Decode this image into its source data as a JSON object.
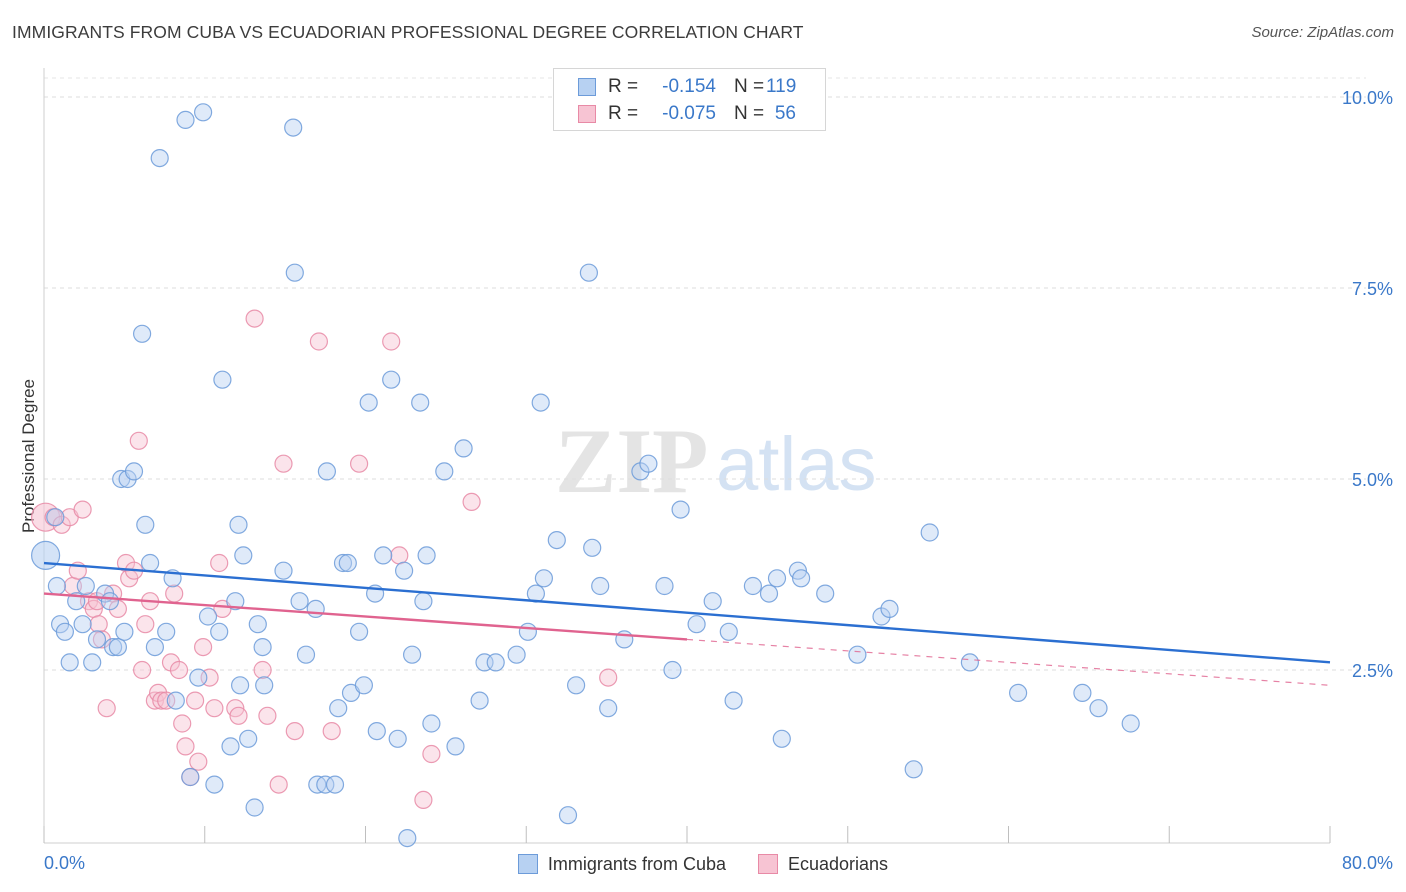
{
  "title": "IMMIGRANTS FROM CUBA VS ECUADORIAN PROFESSIONAL DEGREE CORRELATION CHART",
  "source": "Source: ZipAtlas.com",
  "watermark": {
    "zip": "ZIP",
    "atlas": "atlas"
  },
  "legend": {
    "r_label": "R =",
    "n_label": "N =",
    "rows": [
      {
        "name": "Immigrants from Cuba",
        "r": "-0.154",
        "n": "119",
        "fill": "#b7d1f2",
        "stroke": "#6c9bd9"
      },
      {
        "name": "Ecuadorians",
        "r": "-0.075",
        "n": "56",
        "fill": "#f7c4d3",
        "stroke": "#e88aa6"
      }
    ]
  },
  "chart_data": {
    "type": "scatter",
    "title": "IMMIGRANTS FROM CUBA VS ECUADORIAN PROFESSIONAL DEGREE CORRELATION CHART",
    "xlabel": "",
    "ylabel": "Professional Degree",
    "xlim": [
      0,
      80
    ],
    "ylim": [
      0,
      10.5
    ],
    "x_tick_labels": [
      "0.0%",
      "80.0%"
    ],
    "y_ticks": [
      2.5,
      5.0,
      7.5,
      10.0
    ],
    "y_tick_labels": [
      "2.5%",
      "5.0%",
      "7.5%",
      "10.0%"
    ],
    "grid": true,
    "legend_position": "top-center",
    "series": [
      {
        "name": "Immigrants from Cuba",
        "color": "#6c9bd9",
        "fill": "#b7d1f2",
        "trend": {
          "x": [
            0,
            80
          ],
          "y": [
            3.9,
            2.6
          ],
          "color": "#2b6fd1"
        },
        "points": [
          [
            0.1,
            4.0
          ],
          [
            0.7,
            4.5
          ],
          [
            0.8,
            3.6
          ],
          [
            1.0,
            3.1
          ],
          [
            1.3,
            3.0
          ],
          [
            1.6,
            2.6
          ],
          [
            2.0,
            3.4
          ],
          [
            2.4,
            3.1
          ],
          [
            2.6,
            3.6
          ],
          [
            3.0,
            2.6
          ],
          [
            3.3,
            2.9
          ],
          [
            3.8,
            3.5
          ],
          [
            4.1,
            3.4
          ],
          [
            4.3,
            2.8
          ],
          [
            4.6,
            2.8
          ],
          [
            4.8,
            5.0
          ],
          [
            5.0,
            3.0
          ],
          [
            5.2,
            5.0
          ],
          [
            5.6,
            5.1
          ],
          [
            6.1,
            6.9
          ],
          [
            6.3,
            4.4
          ],
          [
            6.6,
            3.9
          ],
          [
            6.9,
            2.8
          ],
          [
            7.2,
            9.2
          ],
          [
            7.6,
            3.0
          ],
          [
            8.0,
            3.7
          ],
          [
            8.2,
            2.1
          ],
          [
            8.8,
            9.7
          ],
          [
            9.1,
            1.1
          ],
          [
            9.6,
            2.4
          ],
          [
            9.9,
            9.8
          ],
          [
            10.2,
            3.2
          ],
          [
            10.6,
            1.0
          ],
          [
            10.9,
            3.0
          ],
          [
            11.1,
            6.3
          ],
          [
            11.6,
            1.5
          ],
          [
            11.9,
            3.4
          ],
          [
            12.1,
            4.4
          ],
          [
            12.2,
            2.3
          ],
          [
            12.4,
            4.0
          ],
          [
            12.7,
            1.6
          ],
          [
            13.1,
            0.7
          ],
          [
            13.3,
            3.1
          ],
          [
            13.6,
            2.8
          ],
          [
            13.7,
            2.3
          ],
          [
            14.9,
            3.8
          ],
          [
            15.5,
            9.6
          ],
          [
            15.6,
            7.7
          ],
          [
            15.9,
            3.4
          ],
          [
            16.3,
            2.7
          ],
          [
            16.9,
            3.3
          ],
          [
            17.0,
            1.0
          ],
          [
            17.5,
            1.0
          ],
          [
            17.6,
            5.1
          ],
          [
            18.1,
            1.0
          ],
          [
            18.3,
            2.0
          ],
          [
            18.6,
            3.9
          ],
          [
            18.9,
            3.9
          ],
          [
            19.1,
            2.2
          ],
          [
            19.6,
            3.0
          ],
          [
            19.9,
            2.3
          ],
          [
            20.2,
            6.0
          ],
          [
            20.6,
            3.5
          ],
          [
            20.7,
            1.7
          ],
          [
            21.1,
            4.0
          ],
          [
            21.6,
            6.3
          ],
          [
            22.0,
            1.6
          ],
          [
            22.4,
            3.8
          ],
          [
            22.6,
            0.3
          ],
          [
            22.9,
            2.7
          ],
          [
            23.4,
            6.0
          ],
          [
            23.6,
            3.4
          ],
          [
            23.8,
            4.0
          ],
          [
            24.1,
            1.8
          ],
          [
            24.9,
            5.1
          ],
          [
            25.6,
            1.5
          ],
          [
            26.1,
            5.4
          ],
          [
            27.1,
            2.1
          ],
          [
            27.4,
            2.6
          ],
          [
            28.1,
            2.6
          ],
          [
            29.4,
            2.7
          ],
          [
            30.1,
            3.0
          ],
          [
            30.6,
            3.5
          ],
          [
            30.9,
            6.0
          ],
          [
            31.1,
            3.7
          ],
          [
            31.9,
            4.2
          ],
          [
            32.6,
            0.6
          ],
          [
            33.1,
            2.3
          ],
          [
            33.9,
            7.7
          ],
          [
            34.1,
            4.1
          ],
          [
            34.6,
            3.6
          ],
          [
            35.1,
            2.0
          ],
          [
            36.1,
            2.9
          ],
          [
            37.1,
            5.1
          ],
          [
            37.6,
            5.2
          ],
          [
            38.6,
            3.6
          ],
          [
            39.1,
            2.5
          ],
          [
            39.6,
            4.6
          ],
          [
            40.6,
            3.1
          ],
          [
            41.6,
            3.4
          ],
          [
            42.6,
            3.0
          ],
          [
            42.9,
            2.1
          ],
          [
            44.1,
            3.6
          ],
          [
            45.1,
            3.5
          ],
          [
            45.6,
            3.7
          ],
          [
            45.9,
            1.6
          ],
          [
            46.9,
            3.8
          ],
          [
            47.1,
            3.7
          ],
          [
            48.6,
            3.5
          ],
          [
            50.6,
            2.7
          ],
          [
            52.1,
            3.2
          ],
          [
            52.6,
            3.3
          ],
          [
            54.1,
            1.2
          ],
          [
            55.1,
            4.3
          ],
          [
            57.6,
            2.6
          ],
          [
            60.6,
            2.2
          ],
          [
            64.6,
            2.2
          ],
          [
            65.6,
            2.0
          ],
          [
            67.6,
            1.8
          ]
        ]
      },
      {
        "name": "Ecuadorians",
        "color": "#e88aa6",
        "fill": "#f7c4d3",
        "trend": {
          "x": [
            0,
            40
          ],
          "y": [
            3.5,
            2.9
          ],
          "dash_to": [
            80,
            2.3
          ],
          "color": "#e0638f"
        },
        "points": [
          [
            0.1,
            4.5
          ],
          [
            0.6,
            4.5
          ],
          [
            1.1,
            4.4
          ],
          [
            1.6,
            4.5
          ],
          [
            1.8,
            3.6
          ],
          [
            2.1,
            3.8
          ],
          [
            2.4,
            4.6
          ],
          [
            2.8,
            3.4
          ],
          [
            3.1,
            3.3
          ],
          [
            3.3,
            3.4
          ],
          [
            3.4,
            3.1
          ],
          [
            3.6,
            2.9
          ],
          [
            3.9,
            2.0
          ],
          [
            4.3,
            3.5
          ],
          [
            4.6,
            3.3
          ],
          [
            5.1,
            3.9
          ],
          [
            5.3,
            3.7
          ],
          [
            5.6,
            3.8
          ],
          [
            5.9,
            5.5
          ],
          [
            6.1,
            2.5
          ],
          [
            6.3,
            3.1
          ],
          [
            6.6,
            3.4
          ],
          [
            6.9,
            2.1
          ],
          [
            7.1,
            2.2
          ],
          [
            7.3,
            2.1
          ],
          [
            7.6,
            2.1
          ],
          [
            7.9,
            2.6
          ],
          [
            8.1,
            3.5
          ],
          [
            8.4,
            2.5
          ],
          [
            8.6,
            1.8
          ],
          [
            8.8,
            1.5
          ],
          [
            9.1,
            1.1
          ],
          [
            9.4,
            2.1
          ],
          [
            9.6,
            1.3
          ],
          [
            9.9,
            2.8
          ],
          [
            10.3,
            2.4
          ],
          [
            10.6,
            2.0
          ],
          [
            10.9,
            3.9
          ],
          [
            11.1,
            3.3
          ],
          [
            11.9,
            2.0
          ],
          [
            12.1,
            1.9
          ],
          [
            13.1,
            7.1
          ],
          [
            13.6,
            2.5
          ],
          [
            13.9,
            1.9
          ],
          [
            14.6,
            1.0
          ],
          [
            14.9,
            5.2
          ],
          [
            15.6,
            1.7
          ],
          [
            17.1,
            6.8
          ],
          [
            17.9,
            1.7
          ],
          [
            19.6,
            5.2
          ],
          [
            21.6,
            6.8
          ],
          [
            22.1,
            4.0
          ],
          [
            23.6,
            0.8
          ],
          [
            24.1,
            1.4
          ],
          [
            26.6,
            4.7
          ],
          [
            35.1,
            2.4
          ]
        ]
      }
    ]
  }
}
